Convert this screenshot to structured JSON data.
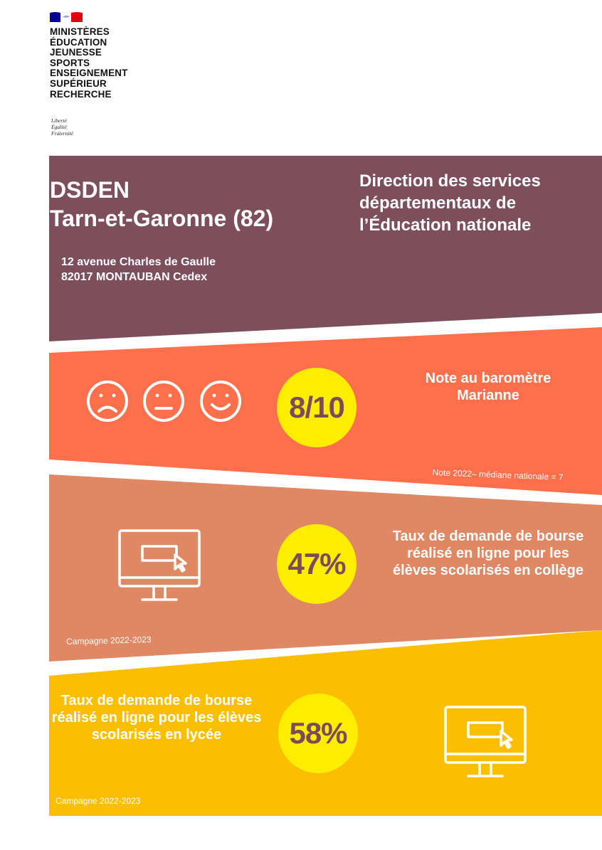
{
  "logo": {
    "lines": [
      "MINISTÈRES",
      "ÉDUCATION",
      "JEUNESSE",
      "SPORTS",
      "ENSEIGNEMENT",
      "SUPÉRIEUR",
      "RECHERCHE"
    ],
    "motto": [
      "Liberté",
      "Égalité",
      "Fraternité"
    ],
    "flag_colors": [
      "#000091",
      "#ffffff",
      "#e1000f"
    ]
  },
  "header": {
    "title": "DSDEN",
    "subtitle": "Tarn-et-Garonne (82)",
    "direction": "Direction des services départementaux de l’Éducation nationale",
    "address_line1": "12 avenue Charles de Gaulle",
    "address_line2": "82017 MONTAUBAN Cedex"
  },
  "barometre": {
    "score": "8/10",
    "label": "Note au baromètre Marianne",
    "note": "Note 2022– médiane nationale = 7",
    "icons": [
      "sad-face-icon",
      "neutral-face-icon",
      "happy-face-icon"
    ]
  },
  "college": {
    "value": "47%",
    "label": "Taux de demande de bourse réalisé en ligne pour les élèves scolarisés en collège",
    "campaign": "Campagne 2022-2023",
    "icon": "computer-monitor-icon"
  },
  "lycee": {
    "value": "58%",
    "label": "Taux de demande de bourse réalisé en ligne pour les élèves scolarisés en lycée",
    "campaign": "Campagne 2022-2023",
    "icon": "computer-monitor-icon"
  },
  "colors": {
    "header_band": "#7d4e5b",
    "barometre_band": "#ff6f4b",
    "college_band": "#e08763",
    "lycee_band": "#fcbe00",
    "circle": "#ffed00",
    "circle_text": "#7d4a57"
  }
}
